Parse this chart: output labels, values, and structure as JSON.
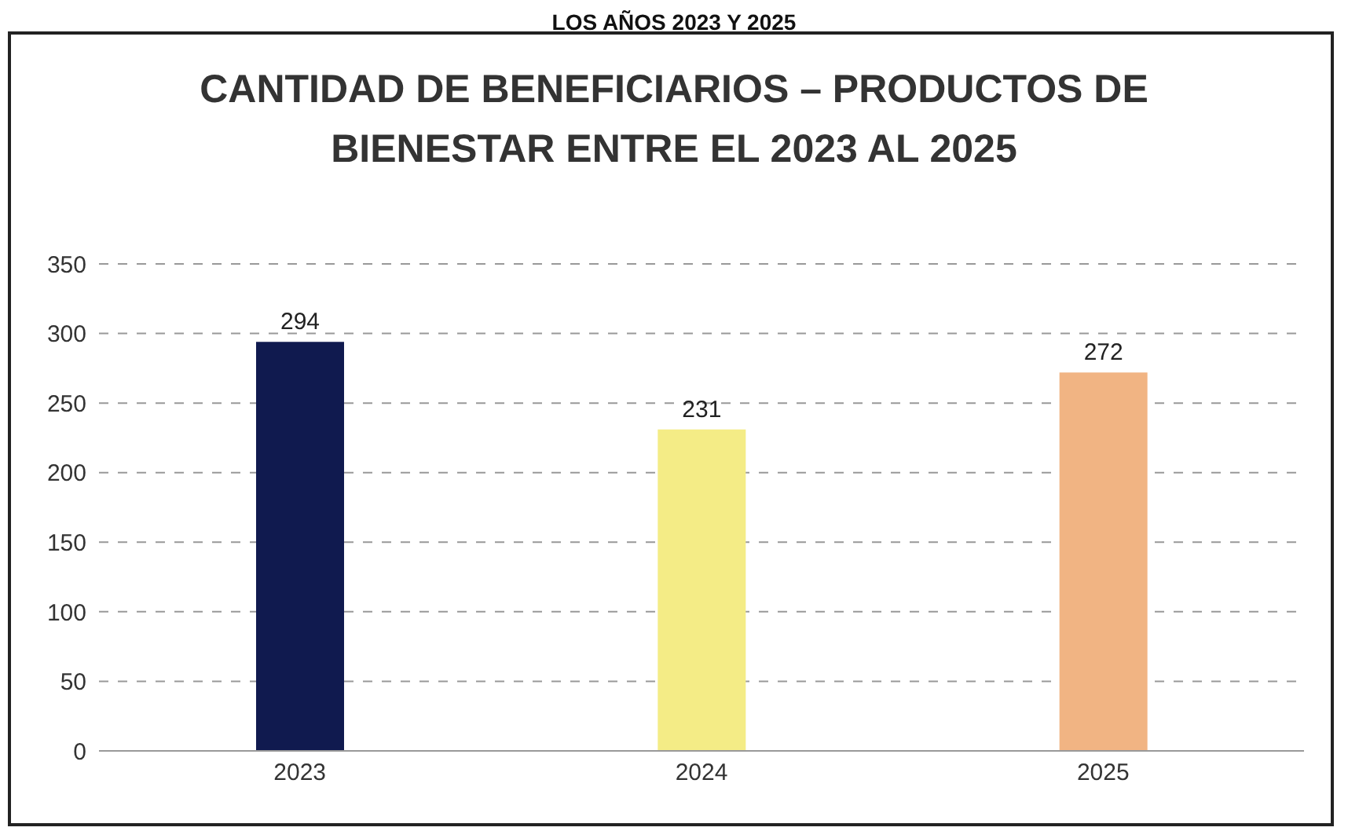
{
  "chart_data": {
    "type": "bar",
    "title": "CANTIDAD DE BENEFICIARIOS – PRODUCTOS DE BIENESTAR ENTRE EL 2023 AL 2025",
    "annotations": [
      "LOS AÑOS 2023 Y 2025"
    ],
    "categories": [
      "2023",
      "2024",
      "2025"
    ],
    "values": [
      294,
      231,
      272
    ],
    "colors": [
      "#101a4f",
      "#f4ec86",
      "#f1b483"
    ],
    "ylim": [
      0,
      350
    ],
    "yticks": [
      0,
      50,
      100,
      150,
      200,
      250,
      300,
      350
    ],
    "grid": "y",
    "data_labels": true
  }
}
